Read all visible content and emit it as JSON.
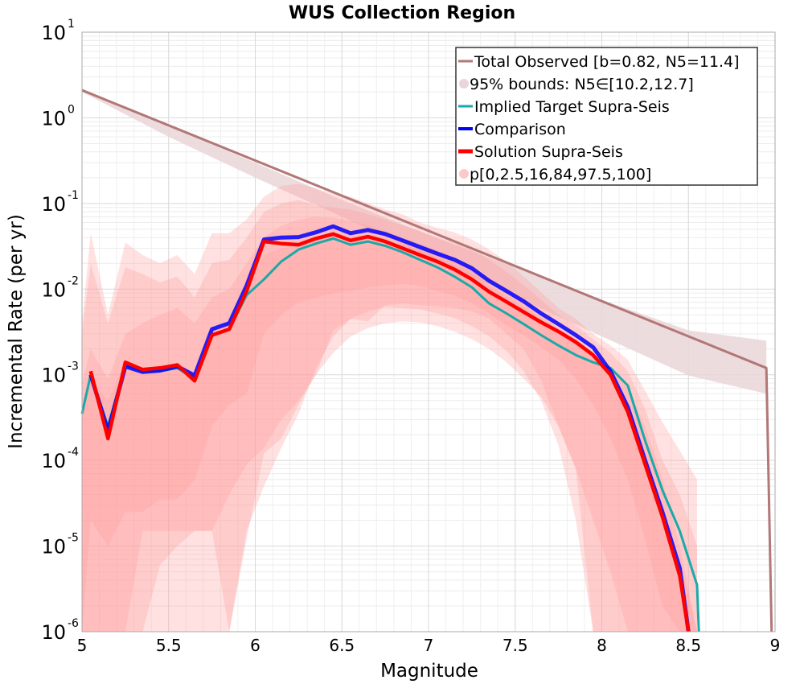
{
  "chart_data": {
    "type": "line",
    "title": "WUS Collection Region",
    "xlabel": "Magnitude",
    "ylabel": "Incremental Rate (per yr)",
    "xlim": [
      5,
      9
    ],
    "ylim": [
      1e-06,
      10
    ],
    "yscale": "log",
    "grid": true,
    "legend_position": "top-right",
    "x_ticks": [
      "5",
      "5.5",
      "6",
      "6.5",
      "7",
      "7.5",
      "8",
      "8.5",
      "9"
    ],
    "y_ticks": [
      {
        "base": "10",
        "exp": "-6"
      },
      {
        "base": "10",
        "exp": "-5"
      },
      {
        "base": "10",
        "exp": "-4"
      },
      {
        "base": "10",
        "exp": "-3"
      },
      {
        "base": "10",
        "exp": "-2"
      },
      {
        "base": "10",
        "exp": "-1"
      },
      {
        "base": "10",
        "exp": "0"
      },
      {
        "base": "10",
        "exp": "1"
      }
    ],
    "legend": [
      {
        "label": "Total Observed [b=0.82, N5=11.4]",
        "color": "#b27777",
        "kind": "line"
      },
      {
        "label": "95% bounds: N5∈[10.2,12.7]",
        "color": "#ead6d8",
        "kind": "band"
      },
      {
        "label": "Implied Target Supra-Seis",
        "color": "#1aa9a9",
        "kind": "line"
      },
      {
        "label": "Comparison",
        "color": "#0000ff",
        "kind": "line"
      },
      {
        "label": "Solution Supra-Seis",
        "color": "#ff0000",
        "kind": "line"
      },
      {
        "label": "p[0,2.5,16,84,97.5,100]",
        "color": "#ffc8c8",
        "kind": "band"
      }
    ],
    "total_observed": {
      "name": "Total Observed [b=0.82, N5=11.4]",
      "color": "#b27777",
      "x": [
        5.0,
        8.95,
        8.98
      ],
      "y": [
        2.1,
        0.0012,
        1e-06
      ]
    },
    "total_observed_bounds": {
      "name": "95% bounds: N5∈[10.2,12.7]",
      "color": "#ead6d8",
      "x": [
        5.0,
        5.5,
        6.0,
        6.5,
        7.0,
        7.5,
        8.0,
        8.5,
        8.95
      ],
      "lower": [
        2.0,
        0.6,
        0.2,
        0.07,
        0.024,
        0.0082,
        0.0028,
        0.00098,
        0.0006
      ],
      "upper": [
        2.2,
        0.8,
        0.3,
        0.11,
        0.043,
        0.018,
        0.0075,
        0.0033,
        0.0025
      ]
    },
    "series": [
      {
        "name": "Implied Target Supra-Seis",
        "color": "#1aa9a9",
        "x": [
          5.0,
          5.05,
          5.15,
          5.25,
          5.35,
          5.45,
          5.55,
          5.65,
          5.75,
          5.85,
          5.95,
          6.05,
          6.15,
          6.25,
          6.35,
          6.45,
          6.55,
          6.65,
          6.75,
          6.85,
          6.95,
          7.05,
          7.15,
          7.25,
          7.35,
          7.45,
          7.55,
          7.65,
          7.75,
          7.85,
          7.95,
          8.05,
          8.15,
          8.25,
          8.35,
          8.45,
          8.55,
          8.56
        ],
        "y": [
          0.00035,
          0.001,
          0.00025,
          0.0013,
          0.0011,
          0.0011,
          0.0012,
          0.0009,
          0.0029,
          0.0034,
          0.0085,
          0.013,
          0.021,
          0.029,
          0.034,
          0.039,
          0.033,
          0.036,
          0.032,
          0.027,
          0.022,
          0.018,
          0.014,
          0.0105,
          0.0068,
          0.0052,
          0.0039,
          0.0029,
          0.0022,
          0.0017,
          0.0014,
          0.0012,
          0.00075,
          0.00017,
          4.5e-05,
          1.5e-05,
          3.5e-06,
          1e-06
        ]
      },
      {
        "name": "Comparison",
        "color": "#0000ff",
        "x": [
          5.05,
          5.15,
          5.25,
          5.35,
          5.45,
          5.55,
          5.65,
          5.75,
          5.85,
          5.95,
          6.05,
          6.15,
          6.25,
          6.35,
          6.45,
          6.55,
          6.65,
          6.75,
          6.85,
          6.95,
          7.05,
          7.15,
          7.25,
          7.35,
          7.45,
          7.55,
          7.65,
          7.75,
          7.85,
          7.95,
          8.05,
          8.15,
          8.25,
          8.35,
          8.45,
          8.5
        ],
        "y": [
          0.001,
          0.00022,
          0.00125,
          0.00108,
          0.00112,
          0.00125,
          0.00098,
          0.0034,
          0.004,
          0.011,
          0.038,
          0.04,
          0.0405,
          0.046,
          0.054,
          0.045,
          0.049,
          0.044,
          0.037,
          0.031,
          0.026,
          0.022,
          0.0175,
          0.0125,
          0.0095,
          0.0072,
          0.0052,
          0.0039,
          0.0029,
          0.0021,
          0.0011,
          0.00042,
          0.0001,
          2.5e-05,
          5.5e-06,
          1e-06
        ]
      },
      {
        "name": "Solution Supra-Seis",
        "color": "#ff0000",
        "x": [
          5.05,
          5.15,
          5.25,
          5.35,
          5.45,
          5.55,
          5.65,
          5.75,
          5.85,
          5.95,
          6.05,
          6.15,
          6.25,
          6.35,
          6.45,
          6.55,
          6.65,
          6.75,
          6.85,
          6.95,
          7.05,
          7.15,
          7.25,
          7.35,
          7.45,
          7.55,
          7.65,
          7.75,
          7.85,
          7.95,
          8.05,
          8.15,
          8.25,
          8.35,
          8.45,
          8.5
        ],
        "y": [
          0.0011,
          0.00018,
          0.0014,
          0.00115,
          0.0012,
          0.0013,
          0.00085,
          0.0029,
          0.0034,
          0.0095,
          0.036,
          0.034,
          0.033,
          0.039,
          0.044,
          0.037,
          0.041,
          0.036,
          0.03,
          0.025,
          0.021,
          0.017,
          0.013,
          0.0093,
          0.0071,
          0.0054,
          0.0041,
          0.0032,
          0.0024,
          0.0017,
          0.001,
          0.00037,
          9e-05,
          2.2e-05,
          4.5e-06,
          1e-06
        ]
      }
    ],
    "percentile_bands": {
      "name": "p[0,2.5,16,84,97.5,100]",
      "color": "#ff9a9a",
      "x": [
        5.0,
        5.05,
        5.15,
        5.25,
        5.35,
        5.45,
        5.55,
        5.65,
        5.75,
        5.85,
        5.95,
        6.05,
        6.15,
        6.25,
        6.35,
        6.45,
        6.55,
        6.65,
        6.75,
        6.85,
        6.95,
        7.05,
        7.15,
        7.25,
        7.35,
        7.45,
        7.55,
        7.65,
        7.75,
        7.85,
        7.95,
        8.05,
        8.15,
        8.25,
        8.35,
        8.45,
        8.55
      ],
      "bands": [
        {
          "lower": [
            1e-06,
            1e-06,
            1e-06,
            1e-06,
            1e-06,
            1e-06,
            1e-06,
            1e-06,
            1e-06,
            1e-06,
            1.2e-05,
            0.00012,
            0.00018,
            0.00045,
            0.001,
            0.0033,
            0.0045,
            0.0042,
            0.0065,
            0.0068,
            0.0065,
            0.0063,
            0.006,
            0.0055,
            0.0045,
            0.003,
            0.002,
            0.00085,
            0.00025,
            8e-05,
            1e-06,
            1e-06,
            1e-06,
            1e-06,
            1e-06,
            1e-06,
            1e-06
          ],
          "upper": [
            0.004,
            0.045,
            0.005,
            0.035,
            0.025,
            0.02,
            0.025,
            0.015,
            0.045,
            0.045,
            0.065,
            0.12,
            0.16,
            0.17,
            0.15,
            0.13,
            0.12,
            0.1,
            0.085,
            0.075,
            0.06,
            0.052,
            0.046,
            0.038,
            0.029,
            0.021,
            0.014,
            0.0092,
            0.006,
            0.0045,
            0.003,
            0.0022,
            0.0015,
            0.00065,
            0.00028,
            0.00013,
            6e-05
          ]
        },
        {
          "lower": [
            1e-06,
            1e-06,
            1e-06,
            1e-06,
            1.5e-05,
            1.5e-05,
            1.5e-05,
            1.5e-05,
            1.5e-05,
            1e-06,
            1.5e-05,
            5e-05,
            0.00014,
            0.00035,
            0.0012,
            0.0028,
            0.0045,
            0.0055,
            0.0062,
            0.006,
            0.0058,
            0.0052,
            0.0046,
            0.0037,
            0.0028,
            0.0019,
            0.0011,
            0.0005,
            0.00015,
            2e-05,
            1e-06,
            1e-06,
            1e-06,
            1e-06,
            1e-06,
            1e-06,
            1e-06
          ],
          "upper": [
            0.003,
            0.02,
            0.004,
            0.018,
            0.015,
            0.012,
            0.014,
            0.008,
            0.02,
            0.022,
            0.04,
            0.08,
            0.1,
            0.11,
            0.095,
            0.09,
            0.085,
            0.075,
            0.065,
            0.055,
            0.048,
            0.04,
            0.035,
            0.029,
            0.022,
            0.016,
            0.011,
            0.0075,
            0.005,
            0.0038,
            0.0026,
            0.0018,
            0.0011,
            0.0004,
            0.0001,
            4e-05,
            1e-05
          ]
        },
        {
          "lower": [
            1e-06,
            1e-06,
            1e-06,
            1e-06,
            1e-06,
            6e-06,
            1e-05,
            1.5e-05,
            1.5e-05,
            4e-05,
            9e-05,
            0.00014,
            0.0003,
            0.0005,
            0.001,
            0.0018,
            0.0028,
            0.0035,
            0.004,
            0.0042,
            0.0041,
            0.0037,
            0.0032,
            0.0026,
            0.002,
            0.0014,
            0.0009,
            0.00055,
            0.00025,
            8e-05,
            2e-05,
            5e-06,
            1e-06,
            1e-06,
            1e-06,
            1e-06,
            1e-06
          ],
          "upper": [
            0.0008,
            0.002,
            0.0009,
            0.003,
            0.004,
            0.005,
            0.006,
            0.004,
            0.008,
            0.01,
            0.02,
            0.04,
            0.055,
            0.065,
            0.07,
            0.068,
            0.063,
            0.056,
            0.048,
            0.04,
            0.034,
            0.028,
            0.023,
            0.018,
            0.013,
            0.0095,
            0.007,
            0.005,
            0.0035,
            0.0026,
            0.0018,
            0.0012,
            0.0007,
            0.00025,
            6e-05,
            1e-05,
            1e-06
          ]
        },
        {
          "lower": [
            1e-06,
            2e-05,
            1e-05,
            2.5e-05,
            2.5e-05,
            3.5e-05,
            3.5e-05,
            6e-05,
            0.00025,
            0.00045,
            0.0006,
            0.003,
            0.005,
            0.007,
            0.008,
            0.009,
            0.0095,
            0.0105,
            0.011,
            0.0115,
            0.011,
            0.0095,
            0.0085,
            0.0068,
            0.0052,
            0.0038,
            0.0029,
            0.0021,
            0.0015,
            0.0009,
            0.00045,
            0.00018,
            6e-05,
            1.2e-05,
            2e-06,
            1e-06,
            1e-06
          ],
          "upper": [
            0.0004,
            0.0009,
            0.0005,
            0.0014,
            0.0012,
            0.0012,
            0.0014,
            0.001,
            0.003,
            0.0042,
            0.01,
            0.025,
            0.03,
            0.032,
            0.038,
            0.043,
            0.041,
            0.042,
            0.038,
            0.033,
            0.028,
            0.023,
            0.019,
            0.015,
            0.011,
            0.0082,
            0.0061,
            0.0046,
            0.0034,
            0.0026,
            0.0018,
            0.00095,
            0.00035,
            9e-05,
            2.5e-05,
            7e-06,
            1e-06
          ]
        }
      ]
    }
  }
}
